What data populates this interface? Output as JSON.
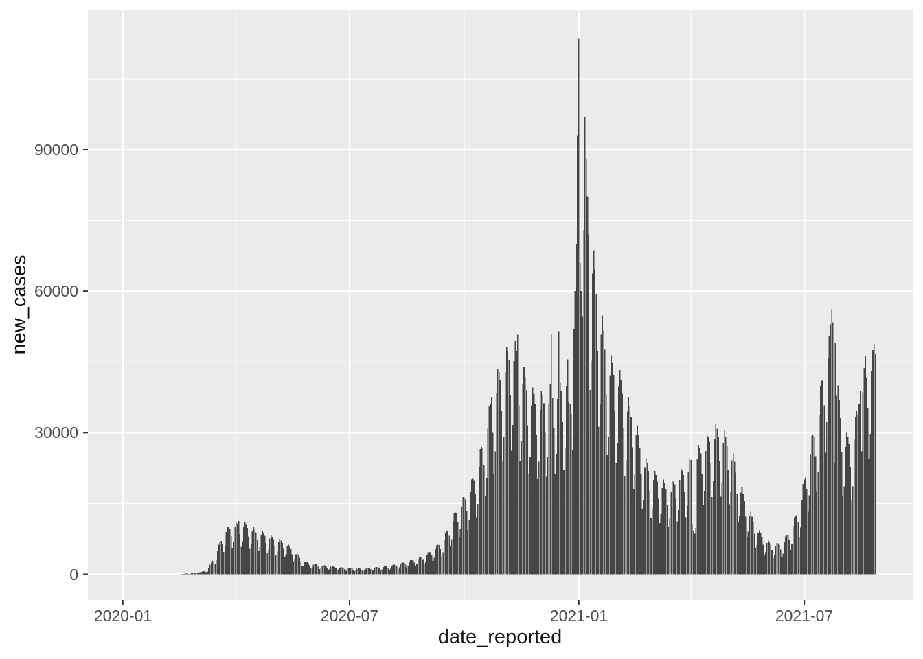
{
  "chart_data": {
    "type": "bar",
    "title": "",
    "xlabel": "date_reported",
    "ylabel": "new_cases",
    "series_name": "new_cases",
    "bar_color": "#454545",
    "panel_bg": "#ebebeb",
    "grid_color": "#ffffff",
    "tick_mark_color": "#333333",
    "tick_label_color": "#4d4d4d",
    "axis_title_color": "#111111",
    "x_axis": {
      "label": "date_reported",
      "tick_labels": [
        "2020-01",
        "2020-07",
        "2021-01",
        "2021-07"
      ],
      "tick_dates": [
        "2020-01-01",
        "2020-07-01",
        "2021-01-01",
        "2021-07-01"
      ],
      "minor_grid_dates": [
        "2020-04-01",
        "2020-10-01",
        "2021-04-01"
      ],
      "range_dates": [
        "2019-12-04",
        "2021-09-26"
      ]
    },
    "y_axis": {
      "label": "new_cases",
      "tick_labels": [
        "0",
        "30000",
        "60000",
        "90000"
      ],
      "tick_values": [
        0,
        30000,
        60000,
        90000
      ],
      "minor_grid_values": [
        15000,
        45000,
        75000,
        105000
      ],
      "range": [
        -5600,
        119500
      ]
    },
    "grid": true,
    "legend": "none",
    "data_start": "2020-01-03",
    "data_end": "2021-08-27",
    "data_frequency": "daily",
    "peak_value": 113500,
    "peak_date": "2021-01-01",
    "weekday_factors": [
      0.52,
      0.62,
      0.9,
      1.0,
      0.97,
      0.92,
      0.76
    ],
    "weekly_envelope": [
      [
        "2020-01-03",
        0
      ],
      [
        "2020-02-14",
        0
      ],
      [
        "2020-02-21",
        150
      ],
      [
        "2020-03-02",
        400
      ],
      [
        "2020-03-09",
        900
      ],
      [
        "2020-03-16",
        4800
      ],
      [
        "2020-03-23",
        9800
      ],
      [
        "2020-03-30",
        11000
      ],
      [
        "2020-04-06",
        11300
      ],
      [
        "2020-04-13",
        10200
      ],
      [
        "2020-04-20",
        9300
      ],
      [
        "2020-04-27",
        8500
      ],
      [
        "2020-05-04",
        7800
      ],
      [
        "2020-05-11",
        6800
      ],
      [
        "2020-05-18",
        5000
      ],
      [
        "2020-05-25",
        2900
      ],
      [
        "2020-06-01",
        2300
      ],
      [
        "2020-06-08",
        2000
      ],
      [
        "2020-06-15",
        1800
      ],
      [
        "2020-06-22",
        1600
      ],
      [
        "2020-06-29",
        1400
      ],
      [
        "2020-07-06",
        1250
      ],
      [
        "2020-07-13",
        1300
      ],
      [
        "2020-07-20",
        1450
      ],
      [
        "2020-07-27",
        1700
      ],
      [
        "2020-08-03",
        1900
      ],
      [
        "2020-08-10",
        2300
      ],
      [
        "2020-08-17",
        2800
      ],
      [
        "2020-08-24",
        3400
      ],
      [
        "2020-08-31",
        4300
      ],
      [
        "2020-09-07",
        5600
      ],
      [
        "2020-09-14",
        7500
      ],
      [
        "2020-09-21",
        12000
      ],
      [
        "2020-09-28",
        15500
      ],
      [
        "2020-10-05",
        18500
      ],
      [
        "2020-10-12",
        24000
      ],
      [
        "2020-10-19",
        33000
      ],
      [
        "2020-10-26",
        42000
      ],
      [
        "2020-11-02",
        47000
      ],
      [
        "2020-11-09",
        51000
      ],
      [
        "2020-11-16",
        45500
      ],
      [
        "2020-11-23",
        40000
      ],
      [
        "2020-11-30",
        38500
      ],
      [
        "2020-12-07",
        40000
      ],
      [
        "2020-12-14",
        41000
      ],
      [
        "2020-12-21",
        43000
      ],
      [
        "2020-12-28",
        52000
      ],
      [
        "2021-01-04",
        88000
      ],
      [
        "2021-01-11",
        73000
      ],
      [
        "2021-01-18",
        58000
      ],
      [
        "2021-01-25",
        47000
      ],
      [
        "2021-02-01",
        45000
      ],
      [
        "2021-02-08",
        39000
      ],
      [
        "2021-02-15",
        34000
      ],
      [
        "2021-02-22",
        25500
      ],
      [
        "2021-03-01",
        22500
      ],
      [
        "2021-03-08",
        20500
      ],
      [
        "2021-03-15",
        19000
      ],
      [
        "2021-03-22",
        22000
      ],
      [
        "2021-03-29",
        23500
      ],
      [
        "2021-04-05",
        27000
      ],
      [
        "2021-04-12",
        28500
      ],
      [
        "2021-04-19",
        32000
      ],
      [
        "2021-04-26",
        31500
      ],
      [
        "2021-05-03",
        28000
      ],
      [
        "2021-05-10",
        20000
      ],
      [
        "2021-05-17",
        14500
      ],
      [
        "2021-05-24",
        10000
      ],
      [
        "2021-05-31",
        7500
      ],
      [
        "2021-06-07",
        6500
      ],
      [
        "2021-06-14",
        7000
      ],
      [
        "2021-06-21",
        10500
      ],
      [
        "2021-06-28",
        16000
      ],
      [
        "2021-07-05",
        27000
      ],
      [
        "2021-07-12",
        35000
      ],
      [
        "2021-07-19",
        52000
      ],
      [
        "2021-07-26",
        44000
      ],
      [
        "2021-08-02",
        30000
      ],
      [
        "2021-08-09",
        30000
      ],
      [
        "2021-08-16",
        42000
      ],
      [
        "2021-08-23",
        48000
      ],
      [
        "2021-08-27",
        47000
      ]
    ],
    "spike_overrides": {
      "2020-04-03": 11300,
      "2020-10-22": 36000,
      "2020-10-23": 37500,
      "2020-11-13": 50800,
      "2020-12-10": 51000,
      "2020-12-16": 51500,
      "2020-12-24": 36500,
      "2020-12-25": 36000,
      "2020-12-26": 34000,
      "2020-12-28": 52000,
      "2020-12-29": 60000,
      "2020-12-30": 70000,
      "2020-12-31": 93000,
      "2021-01-01": 113500,
      "2021-01-02": 66000,
      "2021-01-03": 60000,
      "2021-01-05": 73000,
      "2021-01-06": 97000,
      "2021-01-07": 88000,
      "2021-01-08": 80000,
      "2021-01-09": 72000,
      "2021-04-02": 10500,
      "2021-04-03": 9200,
      "2021-04-04": 8600,
      "2021-04-05": 9800,
      "2021-07-21": 50500,
      "2021-07-22": 53000,
      "2021-07-23": 56200,
      "2021-07-24": 53400,
      "2021-07-26": 49000,
      "2021-08-12": 34600,
      "2021-08-14": 36000,
      "2021-08-15": 38900,
      "2021-08-19": 46300,
      "2021-08-26": 48800,
      "2021-08-27": 46800
    }
  }
}
